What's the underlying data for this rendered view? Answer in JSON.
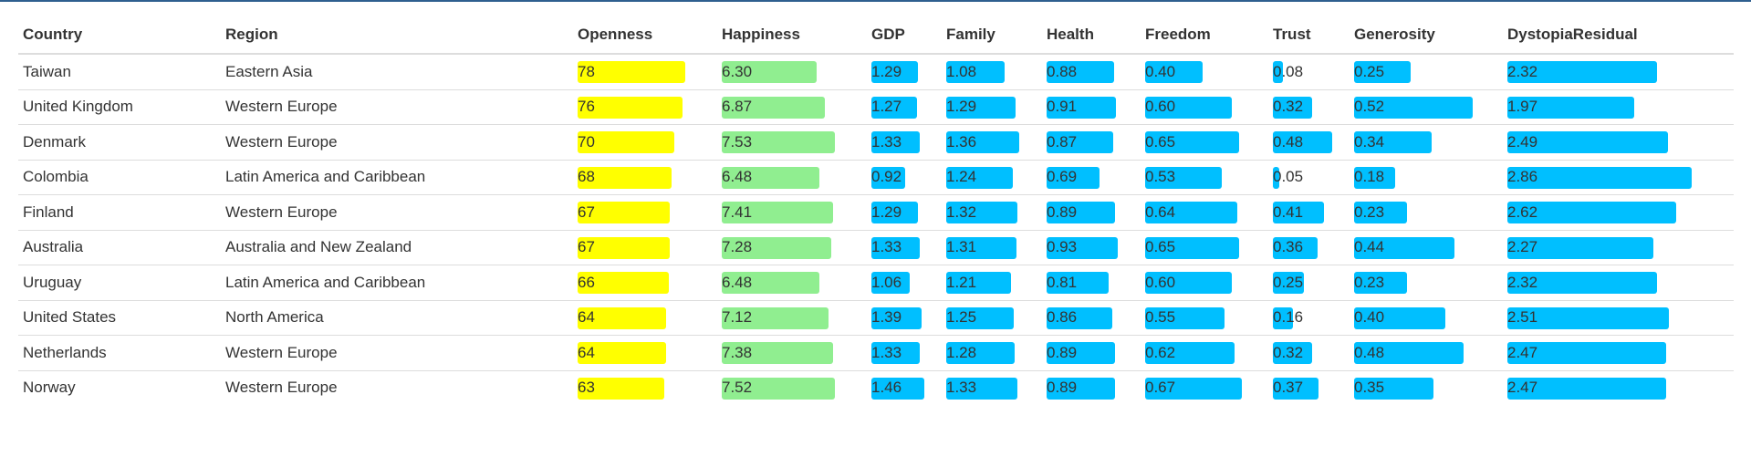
{
  "colors": {
    "openness": "#ffff00",
    "happiness": "#90ee90",
    "factor": "#00bfff",
    "header_rule": "#2f5f8f",
    "grid": "#dddddd"
  },
  "columns": [
    {
      "key": "country",
      "label": "Country",
      "type": "text"
    },
    {
      "key": "region",
      "label": "Region",
      "type": "text"
    },
    {
      "key": "openness",
      "label": "Openness",
      "type": "bar",
      "color": "openness",
      "max": 78
    },
    {
      "key": "happiness",
      "label": "Happiness",
      "type": "bar",
      "color": "happiness",
      "max": 7.53
    },
    {
      "key": "gdp",
      "label": "GDP",
      "type": "bar",
      "color": "factor",
      "max": 1.46
    },
    {
      "key": "family",
      "label": "Family",
      "type": "bar",
      "color": "factor",
      "max": 1.36
    },
    {
      "key": "health",
      "label": "Health",
      "type": "bar",
      "color": "factor",
      "max": 0.93
    },
    {
      "key": "freedom",
      "label": "Freedom",
      "type": "bar",
      "color": "factor",
      "max": 0.67
    },
    {
      "key": "trust",
      "label": "Trust",
      "type": "bar",
      "color": "factor",
      "max": 0.48
    },
    {
      "key": "generosity",
      "label": "Generosity",
      "type": "bar",
      "color": "factor",
      "max": 0.52
    },
    {
      "key": "dystopia",
      "label": "DystopiaResidual",
      "type": "bar",
      "color": "factor",
      "max": 2.86
    }
  ],
  "rows": [
    {
      "country": "Taiwan",
      "region": "Eastern Asia",
      "openness": "78",
      "happiness": "6.30",
      "gdp": "1.29",
      "family": "1.08",
      "health": "0.88",
      "freedom": "0.40",
      "trust": "0.08",
      "generosity": "0.25",
      "dystopia": "2.32"
    },
    {
      "country": "United Kingdom",
      "region": "Western Europe",
      "openness": "76",
      "happiness": "6.87",
      "gdp": "1.27",
      "family": "1.29",
      "health": "0.91",
      "freedom": "0.60",
      "trust": "0.32",
      "generosity": "0.52",
      "dystopia": "1.97"
    },
    {
      "country": "Denmark",
      "region": "Western Europe",
      "openness": "70",
      "happiness": "7.53",
      "gdp": "1.33",
      "family": "1.36",
      "health": "0.87",
      "freedom": "0.65",
      "trust": "0.48",
      "generosity": "0.34",
      "dystopia": "2.49"
    },
    {
      "country": "Colombia",
      "region": "Latin America and Caribbean",
      "openness": "68",
      "happiness": "6.48",
      "gdp": "0.92",
      "family": "1.24",
      "health": "0.69",
      "freedom": "0.53",
      "trust": "0.05",
      "generosity": "0.18",
      "dystopia": "2.86"
    },
    {
      "country": "Finland",
      "region": "Western Europe",
      "openness": "67",
      "happiness": "7.41",
      "gdp": "1.29",
      "family": "1.32",
      "health": "0.89",
      "freedom": "0.64",
      "trust": "0.41",
      "generosity": "0.23",
      "dystopia": "2.62"
    },
    {
      "country": "Australia",
      "region": "Australia and New Zealand",
      "openness": "67",
      "happiness": "7.28",
      "gdp": "1.33",
      "family": "1.31",
      "health": "0.93",
      "freedom": "0.65",
      "trust": "0.36",
      "generosity": "0.44",
      "dystopia": "2.27"
    },
    {
      "country": "Uruguay",
      "region": "Latin America and Caribbean",
      "openness": "66",
      "happiness": "6.48",
      "gdp": "1.06",
      "family": "1.21",
      "health": "0.81",
      "freedom": "0.60",
      "trust": "0.25",
      "generosity": "0.23",
      "dystopia": "2.32"
    },
    {
      "country": "United States",
      "region": "North America",
      "openness": "64",
      "happiness": "7.12",
      "gdp": "1.39",
      "family": "1.25",
      "health": "0.86",
      "freedom": "0.55",
      "trust": "0.16",
      "generosity": "0.40",
      "dystopia": "2.51"
    },
    {
      "country": "Netherlands",
      "region": "Western Europe",
      "openness": "64",
      "happiness": "7.38",
      "gdp": "1.33",
      "family": "1.28",
      "health": "0.89",
      "freedom": "0.62",
      "trust": "0.32",
      "generosity": "0.48",
      "dystopia": "2.47"
    },
    {
      "country": "Norway",
      "region": "Western Europe",
      "openness": "63",
      "happiness": "7.52",
      "gdp": "1.46",
      "family": "1.33",
      "health": "0.89",
      "freedom": "0.67",
      "trust": "0.37",
      "generosity": "0.35",
      "dystopia": "2.47"
    }
  ]
}
